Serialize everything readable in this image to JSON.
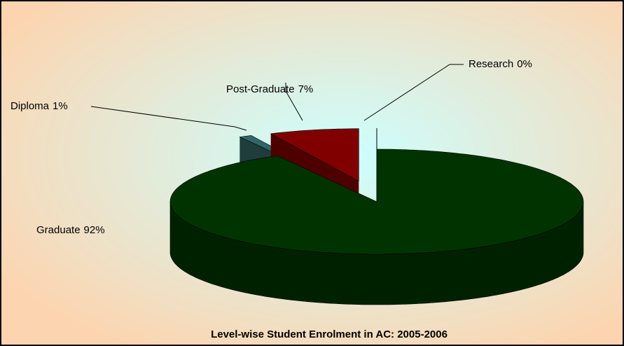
{
  "chart_data": {
    "type": "pie",
    "title": "Level-wise Student Enrolment in AC: 2005-2006",
    "categories": [
      "Graduate",
      "Diploma",
      "Post-Graduate",
      "Research"
    ],
    "values": [
      92,
      1,
      7,
      0
    ],
    "value_labels": [
      "92%",
      "1%",
      "7%",
      "0%"
    ],
    "colors": [
      "#003300",
      "#336666",
      "#800000",
      "#ffffff"
    ]
  }
}
